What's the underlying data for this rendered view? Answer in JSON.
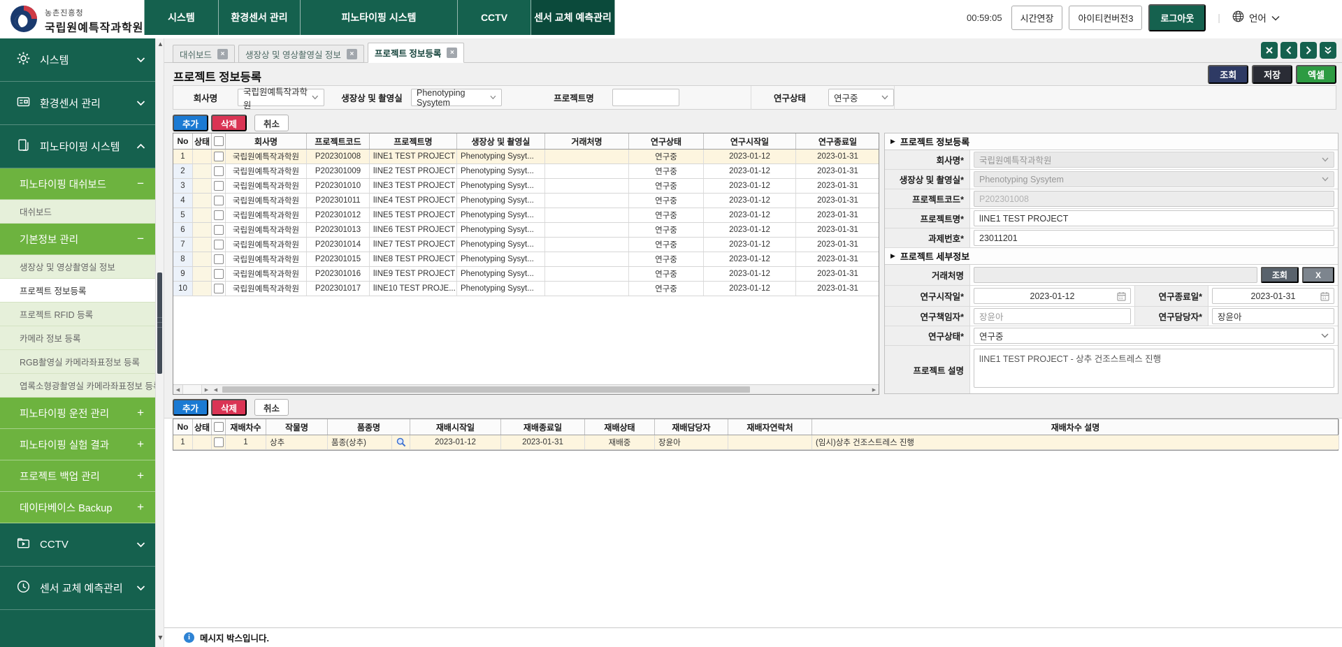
{
  "header": {
    "logo": {
      "agency": "농촌진흥청",
      "org": "국립원예특작과학원"
    },
    "menu": [
      {
        "label": "시스템",
        "active": false
      },
      {
        "label": "환경센서 관리",
        "active": false
      },
      {
        "label": "피노타이핑 시스템",
        "active": false
      },
      {
        "label": "CCTV",
        "active": false
      },
      {
        "label": "센서 교체 예측관리",
        "active": true
      }
    ],
    "session_timer": "00:59:05",
    "extend_button": "시간연장",
    "user_button": "아이티컨버전3",
    "logout_button": "로그아웃",
    "language_label": "언어"
  },
  "sidebar": {
    "items": [
      {
        "label": "시스템",
        "type": "root",
        "icon": "gear-icon",
        "chevron": "down"
      },
      {
        "label": "환경센서 관리",
        "type": "root",
        "icon": "folder-icon",
        "chevron": "down"
      },
      {
        "label": "피노타이핑 시스템",
        "type": "root",
        "icon": "document-icon",
        "chevron": "up"
      },
      {
        "label": "피노타이핑 대쉬보드",
        "type": "group",
        "state": "minus"
      },
      {
        "label": "대쉬보드",
        "type": "leaf",
        "selected": false
      },
      {
        "label": "기본정보 관리",
        "type": "group",
        "state": "minus"
      },
      {
        "label": "생장상 및 영상촬영실 정보",
        "type": "leaf",
        "selected": false
      },
      {
        "label": "프로젝트 정보등록",
        "type": "leaf",
        "selected": true
      },
      {
        "label": "프로젝트 RFID 등록",
        "type": "leaf",
        "selected": false
      },
      {
        "label": "카메라 정보 등록",
        "type": "leaf",
        "selected": false
      },
      {
        "label": "RGB촬영실 카메라좌표정보 등록",
        "type": "leaf",
        "selected": false
      },
      {
        "label": "엽록소형광촬영실 카메라좌표정보 등록",
        "type": "leaf",
        "selected": false
      },
      {
        "label": "피노타이핑 운전 관리",
        "type": "group",
        "state": "plus"
      },
      {
        "label": "피노타이핑 실험 결과",
        "type": "group",
        "state": "plus"
      },
      {
        "label": "프로젝트 백업 관리",
        "type": "group",
        "state": "plus"
      },
      {
        "label": "데이타베이스 Backup",
        "type": "group",
        "state": "plus"
      },
      {
        "label": "CCTV",
        "type": "root",
        "icon": "cctv-icon",
        "chevron": "down"
      },
      {
        "label": "센서 교체 예측관리",
        "type": "root",
        "icon": "sensor-icon",
        "chevron": "down"
      }
    ]
  },
  "tabs": [
    {
      "label": "대쉬보드",
      "active": false
    },
    {
      "label": "생장상 및 영상촬영실 정보",
      "active": false
    },
    {
      "label": "프로젝트 정보등록",
      "active": true
    }
  ],
  "page": {
    "title": "프로젝트 정보등록"
  },
  "toolbar": {
    "search": "조회",
    "save": "저장",
    "excel": "엑셀"
  },
  "filter": {
    "company_label": "회사명",
    "company_value": "국립원예특작과학원",
    "chamber_label": "생장상 및 촬영실",
    "chamber_value": "Phenotyping Sysytem",
    "project_label": "프로젝트명",
    "project_value": "",
    "status_label": "연구상태",
    "status_value": "연구중"
  },
  "grid_actions": {
    "add": "추가",
    "delete": "삭제",
    "cancel": "취소"
  },
  "project_grid": {
    "headers": {
      "no": "No",
      "status": "상태",
      "company": "회사명",
      "code": "프로젝트코드",
      "name": "프로젝트명",
      "chamber": "생장상 및 촬영실",
      "client": "거래처명",
      "state": "연구상태",
      "start": "연구시작일",
      "end": "연구종료일"
    },
    "rows": [
      {
        "no": "1",
        "status": "",
        "company": "국립원예특작과학원",
        "code": "P202301008",
        "name": "lINE1 TEST PROJECT",
        "chamber": "Phenotyping Sysyt...",
        "client": "",
        "state": "연구중",
        "start": "2023-01-12",
        "end": "2023-01-31",
        "selected": true
      },
      {
        "no": "2",
        "status": "",
        "company": "국립원예특작과학원",
        "code": "P202301009",
        "name": "lINE2 TEST PROJECT",
        "chamber": "Phenotyping Sysyt...",
        "client": "",
        "state": "연구중",
        "start": "2023-01-12",
        "end": "2023-01-31",
        "selected": false
      },
      {
        "no": "3",
        "status": "",
        "company": "국립원예특작과학원",
        "code": "P202301010",
        "name": "lINE3 TEST PROJECT",
        "chamber": "Phenotyping Sysyt...",
        "client": "",
        "state": "연구중",
        "start": "2023-01-12",
        "end": "2023-01-31",
        "selected": false
      },
      {
        "no": "4",
        "status": "",
        "company": "국립원예특작과학원",
        "code": "P202301011",
        "name": "lINE4 TEST PROJECT",
        "chamber": "Phenotyping Sysyt...",
        "client": "",
        "state": "연구중",
        "start": "2023-01-12",
        "end": "2023-01-31",
        "selected": false
      },
      {
        "no": "5",
        "status": "",
        "company": "국립원예특작과학원",
        "code": "P202301012",
        "name": "lINE5 TEST PROJECT",
        "chamber": "Phenotyping Sysyt...",
        "client": "",
        "state": "연구중",
        "start": "2023-01-12",
        "end": "2023-01-31",
        "selected": false
      },
      {
        "no": "6",
        "status": "",
        "company": "국립원예특작과학원",
        "code": "P202301013",
        "name": "lINE6 TEST PROJECT",
        "chamber": "Phenotyping Sysyt...",
        "client": "",
        "state": "연구중",
        "start": "2023-01-12",
        "end": "2023-01-31",
        "selected": false
      },
      {
        "no": "7",
        "status": "",
        "company": "국립원예특작과학원",
        "code": "P202301014",
        "name": "lINE7 TEST PROJECT",
        "chamber": "Phenotyping Sysyt...",
        "client": "",
        "state": "연구중",
        "start": "2023-01-12",
        "end": "2023-01-31",
        "selected": false
      },
      {
        "no": "8",
        "status": "",
        "company": "국립원예특작과학원",
        "code": "P202301015",
        "name": "lINE8 TEST PROJECT",
        "chamber": "Phenotyping Sysyt...",
        "client": "",
        "state": "연구중",
        "start": "2023-01-12",
        "end": "2023-01-31",
        "selected": false
      },
      {
        "no": "9",
        "status": "",
        "company": "국립원예특작과학원",
        "code": "P202301016",
        "name": "lINE9 TEST PROJECT",
        "chamber": "Phenotyping Sysyt...",
        "client": "",
        "state": "연구중",
        "start": "2023-01-12",
        "end": "2023-01-31",
        "selected": false
      },
      {
        "no": "10",
        "status": "",
        "company": "국립원예특작과학원",
        "code": "P202301017",
        "name": "lINE10 TEST PROJE...",
        "chamber": "Phenotyping Sysyt...",
        "client": "",
        "state": "연구중",
        "start": "2023-01-12",
        "end": "2023-01-31",
        "selected": false
      }
    ]
  },
  "form": {
    "section1_title": "프로젝트 정보등록",
    "company": {
      "label": "회사명*",
      "value": "국립원예특작과학원"
    },
    "chamber": {
      "label": "생장상 및 촬영실*",
      "value": "Phenotyping Sysytem"
    },
    "code": {
      "label": "프로젝트코드*",
      "value": "P202301008"
    },
    "name": {
      "label": "프로젝트명*",
      "value": "lINE1 TEST PROJECT"
    },
    "task_no": {
      "label": "과제번호*",
      "value": "23011201"
    },
    "section2_title": "프로젝트 세부정보",
    "client": {
      "label": "거래처명",
      "value": "",
      "search_button": "조회",
      "clear_button": "X"
    },
    "start_date": {
      "label": "연구시작일*",
      "value": "2023-01-12"
    },
    "end_date": {
      "label": "연구종료일*",
      "value": "2023-01-31"
    },
    "leader": {
      "label": "연구책임자*",
      "value": "장윤아"
    },
    "manager": {
      "label": "연구담당자*",
      "value": "장윤아"
    },
    "status": {
      "label": "연구상태*",
      "value": "연구중"
    },
    "description": {
      "label": "프로젝트 설명",
      "value": "lINE1 TEST PROJECT - 상추 건조스트레스 진행"
    }
  },
  "cultivation_grid": {
    "headers": {
      "no": "No",
      "status": "상태",
      "round": "재배차수",
      "crop": "작물명",
      "variety": "품종명",
      "start": "재배시작일",
      "end": "재배종료일",
      "state": "재배상태",
      "manager": "재배담당자",
      "contact": "재배자연락처",
      "description": "재배차수 설명"
    },
    "rows": [
      {
        "no": "1",
        "status": "",
        "round": "1",
        "crop": "상추",
        "variety": "품종(상추)",
        "start": "2023-01-12",
        "end": "2023-01-31",
        "state": "재배중",
        "manager": "장윤아",
        "contact": "",
        "description": "(임시)상추 건조스트레스 진행",
        "selected": true
      }
    ]
  },
  "statusbar": {
    "message": "메시지 박스입니다."
  },
  "colors": {
    "header_green": "#15614e",
    "menu_active_green": "#0b4a3b",
    "group_green": "#6db33f",
    "leaf_pale": "#e6f0da",
    "selected_row": "#fdf5df",
    "add_blue": "#1b7ad3",
    "delete_red": "#da3454",
    "search_navy": "#2e3a64",
    "save_dark": "#2a2c35",
    "excel_green": "#2d9b42"
  }
}
